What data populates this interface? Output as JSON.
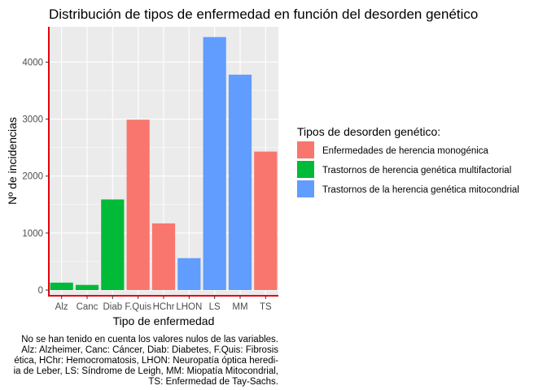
{
  "chart_data": {
    "type": "bar",
    "title": "Distribución de tipos de enfermedad en función del desorden genético",
    "xlabel": "Tipo de enfermedad",
    "ylabel": "Nº de incidencias",
    "categories": [
      "Alz",
      "Canc",
      "Diab",
      "F.Quis",
      "HChr",
      "LHON",
      "LS",
      "MM",
      "TS"
    ],
    "values": [
      130,
      90,
      1590,
      2990,
      1170,
      560,
      4440,
      3780,
      2430
    ],
    "group": [
      1,
      1,
      1,
      0,
      0,
      2,
      2,
      2,
      0
    ],
    "ylim": [
      -100,
      4620
    ],
    "yticks": [
      0,
      1000,
      2000,
      3000,
      4000
    ],
    "ytick_labels": [
      "0",
      "1000",
      "2000",
      "3000",
      "4000"
    ],
    "grid": true,
    "legend_position": "right",
    "legend": {
      "title": "Tipos de desorden genético:",
      "entries": [
        {
          "label": "Enfermedades de herencia monogénica",
          "color": "#F8766D"
        },
        {
          "label": "Trastornos de herencia genética multifactorial",
          "color": "#00BA38"
        },
        {
          "label": "Trastornos de la herencia genética mitocondrial",
          "color": "#619CFF"
        }
      ]
    },
    "caption": [
      "No se han tenido en cuenta los valores nulos de las variables.",
      "Alz: Alzheimer, Canc: Cáncer, Diab: Diabetes, F.Quis: Fibrosis",
      "ética, HChr: Hemocromatosis, LHON: Neuropatía óptica heredi-",
      "ia de Leber, LS: Síndrome de Leigh, MM: Miopatía Mitocondrial,",
      "TS: Enfermedad de Tay-Sachs."
    ],
    "colors": {
      "panel_background": "#EBEBEB",
      "grid_major": "#FFFFFF",
      "axis_line": "#E8000B"
    }
  }
}
